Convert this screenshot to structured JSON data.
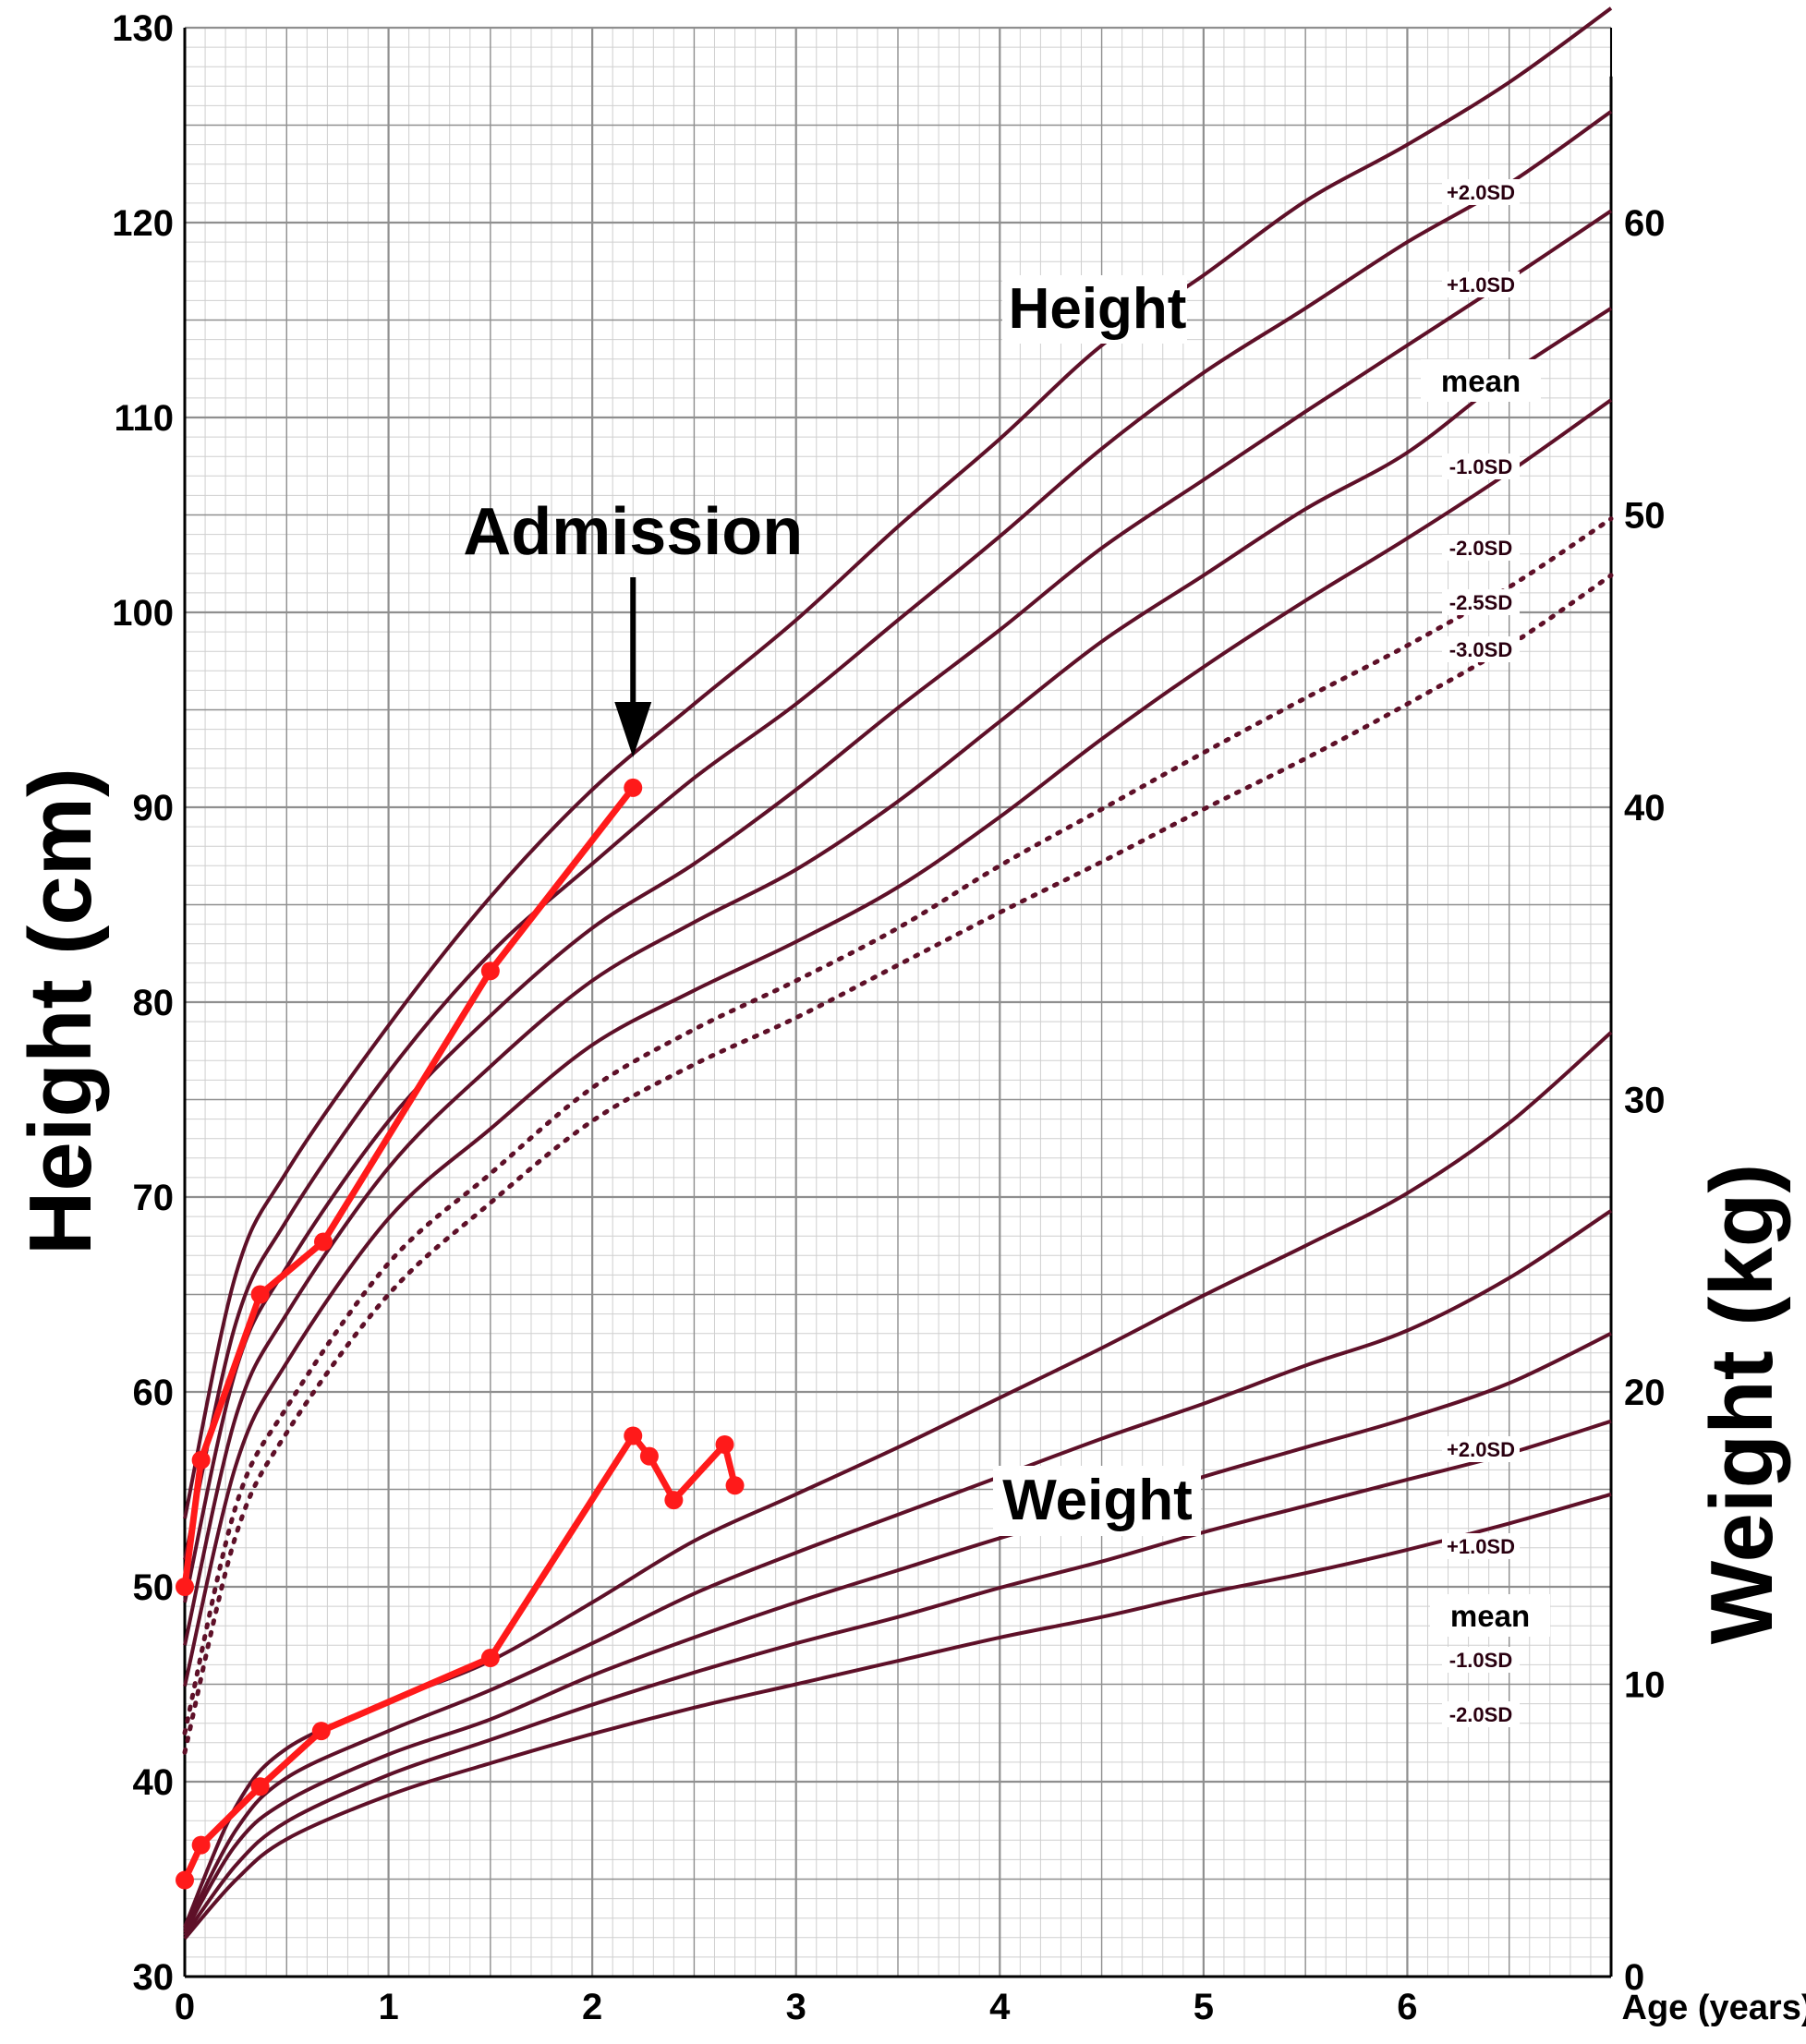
{
  "chart_data": {
    "type": "line",
    "x_axis": {
      "label": "Age (years)",
      "range": [
        0,
        7
      ],
      "ticks": [
        "0",
        "1",
        "2",
        "3",
        "4",
        "5",
        "6"
      ]
    },
    "y_axis_left": {
      "label": "Height (cm)",
      "range": [
        30,
        130
      ],
      "ticks": [
        "30",
        "40",
        "50",
        "60",
        "70",
        "80",
        "90",
        "100",
        "110",
        "120",
        "130"
      ]
    },
    "y_axis_right": {
      "label": "Weight (kg)",
      "range": [
        0,
        65
      ],
      "ticks": [
        "0",
        "10",
        "20",
        "30",
        "40",
        "50",
        "60"
      ]
    },
    "grid": true,
    "height_curves": {
      "title": "Height",
      "x": [
        0,
        0.25,
        0.5,
        1,
        1.5,
        2,
        2.5,
        3,
        3.5,
        4,
        4.5,
        5,
        5.5,
        6,
        6.5,
        7
      ],
      "series": [
        {
          "name": "+2.0SD",
          "values": [
            53.5,
            66,
            71.3,
            78.8,
            85.4,
            90.9,
            95.3,
            99.6,
            104.4,
            108.9,
            113.7,
            117.3,
            121.1,
            124,
            127.2,
            131
          ]
        },
        {
          "name": "+1.0SD",
          "values": [
            51.4,
            63.5,
            68.8,
            76.4,
            82.5,
            87.1,
            91.5,
            95.3,
            99.6,
            103.9,
            108.4,
            112.3,
            115.6,
            119,
            122,
            125.7
          ]
        },
        {
          "name": "mean",
          "values": [
            49.2,
            61.1,
            66.4,
            73.9,
            79.3,
            83.8,
            87.1,
            90.9,
            95.1,
            99.1,
            103.3,
            106.8,
            110.3,
            113.7,
            117.1,
            120.6
          ]
        },
        {
          "name": "-1.0SD",
          "values": [
            47,
            58.7,
            64,
            71.5,
            76.7,
            81.1,
            84.1,
            86.8,
            90.3,
            94.4,
            98.5,
            101.9,
            105.3,
            108.2,
            112.2,
            115.6
          ]
        },
        {
          "name": "-2.0SD",
          "values": [
            44.9,
            56.2,
            61.5,
            68.9,
            73.5,
            77.8,
            80.6,
            83.1,
            85.9,
            89.5,
            93.5,
            97.2,
            100.6,
            103.8,
            107.2,
            110.9
          ]
        },
        {
          "name": "-2.5SD",
          "style": "dotted",
          "values": [
            42.5,
            54.1,
            59.2,
            66.6,
            71.2,
            75.6,
            78.6,
            81.1,
            83.8,
            87,
            89.9,
            92.8,
            95.6,
            98.3,
            101.3,
            104.8
          ]
        },
        {
          "name": "-3.0SD",
          "style": "dotted",
          "values": [
            41.5,
            52.6,
            57.9,
            65,
            69.7,
            73.9,
            76.8,
            79.2,
            81.9,
            84.6,
            87.2,
            89.9,
            92.5,
            95.3,
            98.3,
            101.9
          ]
        }
      ]
    },
    "weight_curves": {
      "title": "Weight",
      "x": [
        0,
        0.25,
        0.5,
        1,
        1.5,
        2,
        2.5,
        3,
        3.5,
        4,
        4.5,
        5,
        5.5,
        6,
        6.5,
        7
      ],
      "series": [
        {
          "name": "+2.0SD",
          "values": [
            1.7,
            5.8,
            7.8,
            9.4,
            10.8,
            12.8,
            14.9,
            16.5,
            18.1,
            19.8,
            21.5,
            23.3,
            25,
            26.8,
            29.2,
            32.3
          ]
        },
        {
          "name": "+1.0SD",
          "values": [
            1.6,
            5,
            6.8,
            8.4,
            9.8,
            11.4,
            13.1,
            14.5,
            15.8,
            17.1,
            18.4,
            19.6,
            20.9,
            22.1,
            23.9,
            26.2
          ]
        },
        {
          "name": "mean",
          "values": [
            1.5,
            4.5,
            6,
            7.6,
            8.8,
            10.3,
            11.6,
            12.8,
            13.9,
            15,
            16,
            17.1,
            18.1,
            19.1,
            20.3,
            22
          ]
        },
        {
          "name": "-1.0SD",
          "values": [
            1.4,
            3.8,
            5.3,
            6.9,
            8.1,
            9.3,
            10.4,
            11.4,
            12.3,
            13.3,
            14.2,
            15.2,
            16.1,
            17,
            17.9,
            19
          ]
        },
        {
          "name": "-2.0SD",
          "values": [
            1.3,
            3.3,
            4.7,
            6.2,
            7.3,
            8.3,
            9.2,
            10,
            10.8,
            11.6,
            12.3,
            13.1,
            13.8,
            14.6,
            15.5,
            16.5
          ]
        }
      ]
    },
    "patient_height": {
      "x": [
        0,
        0.08,
        0.37,
        0.68,
        1.5,
        2.2
      ],
      "values": [
        50,
        56.5,
        65,
        67.7,
        81.6,
        91
      ]
    },
    "patient_weight": {
      "x": [
        0,
        0.08,
        0.37,
        0.67,
        1.5,
        2.2,
        2.28,
        2.4,
        2.65,
        2.7
      ],
      "values": [
        3.3,
        4.5,
        6.5,
        8.4,
        10.9,
        18.5,
        17.8,
        16.3,
        18.2,
        16.8
      ]
    },
    "annotations": [
      {
        "text": "Admission",
        "x": 2.2,
        "arrow": true
      }
    ],
    "colors": {
      "curves": "#5e1028",
      "patient": "#ff1a1a",
      "grid_minor": "#cfcfcf",
      "grid_major": "#8f8f8f"
    }
  }
}
